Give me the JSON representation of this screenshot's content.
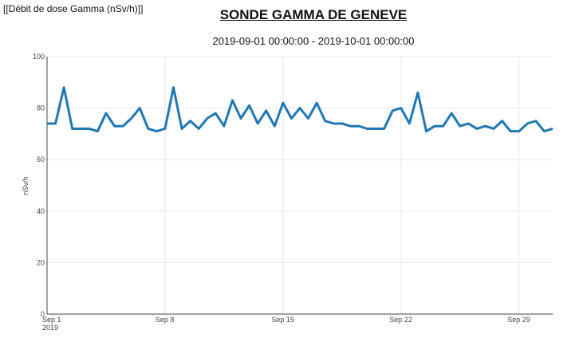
{
  "header": "[[Débit de dose Gamma (nSv/h)]]",
  "chart_data": {
    "type": "line",
    "title": "SONDE GAMMA DE GENEVE",
    "subtitle": "2019-09-01 00:00:00 - 2019-10-01 00:00:00",
    "y_label": "nSv/h",
    "x": [
      "2019-09-01 00:00",
      "2019-09-01 12:00",
      "2019-09-02 00:00",
      "2019-09-02 12:00",
      "2019-09-03 00:00",
      "2019-09-03 12:00",
      "2019-09-04 00:00",
      "2019-09-04 12:00",
      "2019-09-05 00:00",
      "2019-09-05 12:00",
      "2019-09-06 00:00",
      "2019-09-06 12:00",
      "2019-09-07 00:00",
      "2019-09-07 12:00",
      "2019-09-08 00:00",
      "2019-09-08 12:00",
      "2019-09-09 00:00",
      "2019-09-09 12:00",
      "2019-09-10 00:00",
      "2019-09-10 12:00",
      "2019-09-11 00:00",
      "2019-09-11 12:00",
      "2019-09-12 00:00",
      "2019-09-12 12:00",
      "2019-09-13 00:00",
      "2019-09-13 12:00",
      "2019-09-14 00:00",
      "2019-09-14 12:00",
      "2019-09-15 00:00",
      "2019-09-15 12:00",
      "2019-09-16 00:00",
      "2019-09-16 12:00",
      "2019-09-17 00:00",
      "2019-09-17 12:00",
      "2019-09-18 00:00",
      "2019-09-18 12:00",
      "2019-09-19 00:00",
      "2019-09-19 12:00",
      "2019-09-20 00:00",
      "2019-09-20 12:00",
      "2019-09-21 00:00",
      "2019-09-21 12:00",
      "2019-09-22 00:00",
      "2019-09-22 12:00",
      "2019-09-23 00:00",
      "2019-09-23 12:00",
      "2019-09-24 00:00",
      "2019-09-24 12:00",
      "2019-09-25 00:00",
      "2019-09-25 12:00",
      "2019-09-26 00:00",
      "2019-09-26 12:00",
      "2019-09-27 00:00",
      "2019-09-27 12:00",
      "2019-09-28 00:00",
      "2019-09-28 12:00",
      "2019-09-29 00:00",
      "2019-09-29 12:00",
      "2019-09-30 00:00",
      "2019-09-30 12:00",
      "2019-10-01 00:00"
    ],
    "series": [
      {
        "name": "nSv/h",
        "color": "#1f77b4",
        "values": [
          74,
          74,
          88,
          72,
          72,
          72,
          71,
          78,
          73,
          73,
          76,
          80,
          72,
          71,
          72,
          88,
          72,
          75,
          72,
          76,
          78,
          73,
          83,
          76,
          81,
          74,
          79,
          73,
          82,
          76,
          80,
          76,
          82,
          75,
          74,
          74,
          73,
          73,
          72,
          72,
          72,
          79,
          80,
          74,
          86,
          71,
          73,
          73,
          78,
          73,
          74,
          72,
          73,
          72,
          75,
          71,
          71,
          74,
          75,
          71,
          72
        ]
      }
    ],
    "xlim": [
      "2019-09-01 00:00",
      "2019-10-01 00:00"
    ],
    "xticks": [
      {
        "value": "2019-09-01 00:00",
        "label": "Sep 1\n2019"
      },
      {
        "value": "2019-09-08 00:00",
        "label": "Sep 8"
      },
      {
        "value": "2019-09-15 00:00",
        "label": "Sep 15"
      },
      {
        "value": "2019-09-22 00:00",
        "label": "Sep 22"
      },
      {
        "value": "2019-09-29 00:00",
        "label": "Sep 29"
      }
    ],
    "ylim": [
      0,
      100
    ],
    "yticks": [
      0,
      20,
      40,
      60,
      80,
      100
    ],
    "grid": true
  }
}
